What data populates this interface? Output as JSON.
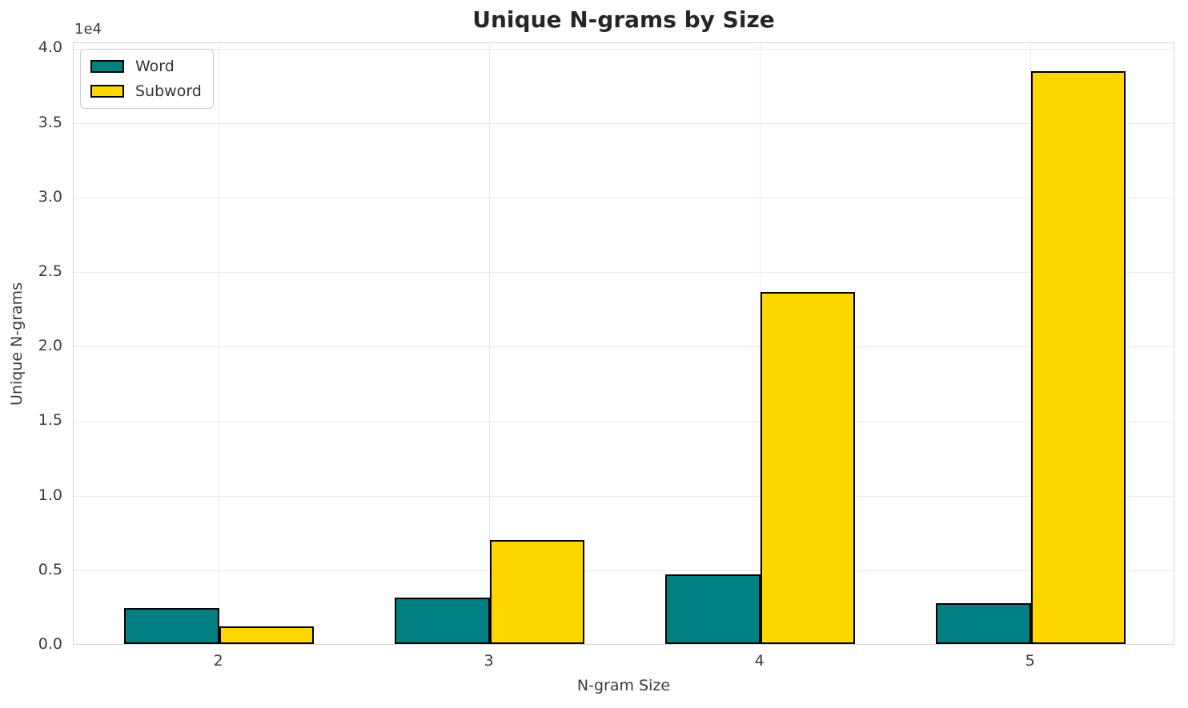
{
  "chart_data": {
    "type": "bar",
    "title": "Unique N-grams by Size",
    "xlabel": "N-gram Size",
    "ylabel": "Unique N-grams",
    "offset_label": "1e4",
    "categories": [
      "2",
      "3",
      "4",
      "5"
    ],
    "series": [
      {
        "name": "Word",
        "color": "#008080",
        "values": [
          2400,
          3100,
          4650,
          2750
        ]
      },
      {
        "name": "Subword",
        "color": "#FFD700",
        "values": [
          1200,
          7000,
          23600,
          38400
        ]
      }
    ],
    "ylim": [
      0,
      40400
    ],
    "yticks": [
      0,
      5000,
      10000,
      15000,
      20000,
      25000,
      30000,
      35000,
      40000
    ],
    "ytick_labels": [
      "0.0",
      "0.5",
      "1.0",
      "1.5",
      "2.0",
      "2.5",
      "3.0",
      "3.5",
      "4.0"
    ],
    "grid": true,
    "legend_position": "upper left",
    "bar_edge_color": "#000000",
    "grid_color": "#e9e9e9",
    "spine_color": "#d5d5d5",
    "text_color": "#3b3b3b",
    "title_color": "#262626",
    "background_color": "#ffffff"
  }
}
